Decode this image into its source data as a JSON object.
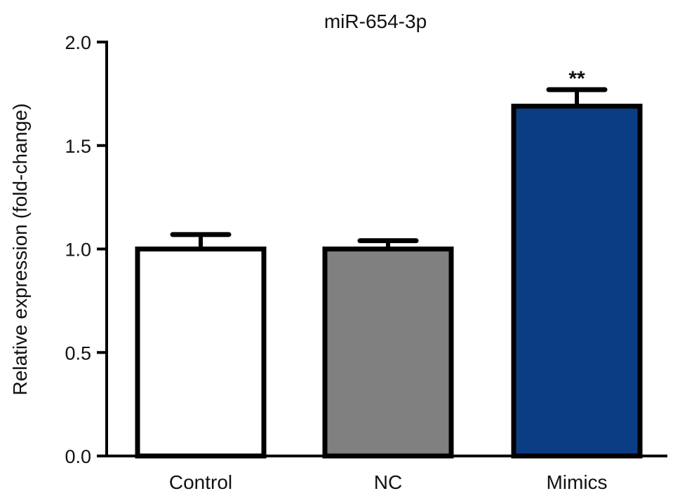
{
  "chart_data": {
    "type": "bar",
    "title": "miR-654-3p",
    "xlabel": "",
    "ylabel": "Relative expression (fold-change)",
    "ylim": [
      0,
      2.0
    ],
    "yticks": [
      0.0,
      0.5,
      1.0,
      1.5,
      2.0
    ],
    "ytick_labels": [
      "0.0",
      "0.5",
      "1.0",
      "1.5",
      "2.0"
    ],
    "categories": [
      "Control",
      "NC",
      "Mimics"
    ],
    "values": [
      1.0,
      1.0,
      1.69
    ],
    "errors": [
      0.07,
      0.04,
      0.08
    ],
    "bar_colors": [
      "#ffffff",
      "#808080",
      "#0b3d85"
    ],
    "significance": [
      "",
      "",
      "**"
    ],
    "grid": false,
    "legend": false
  }
}
